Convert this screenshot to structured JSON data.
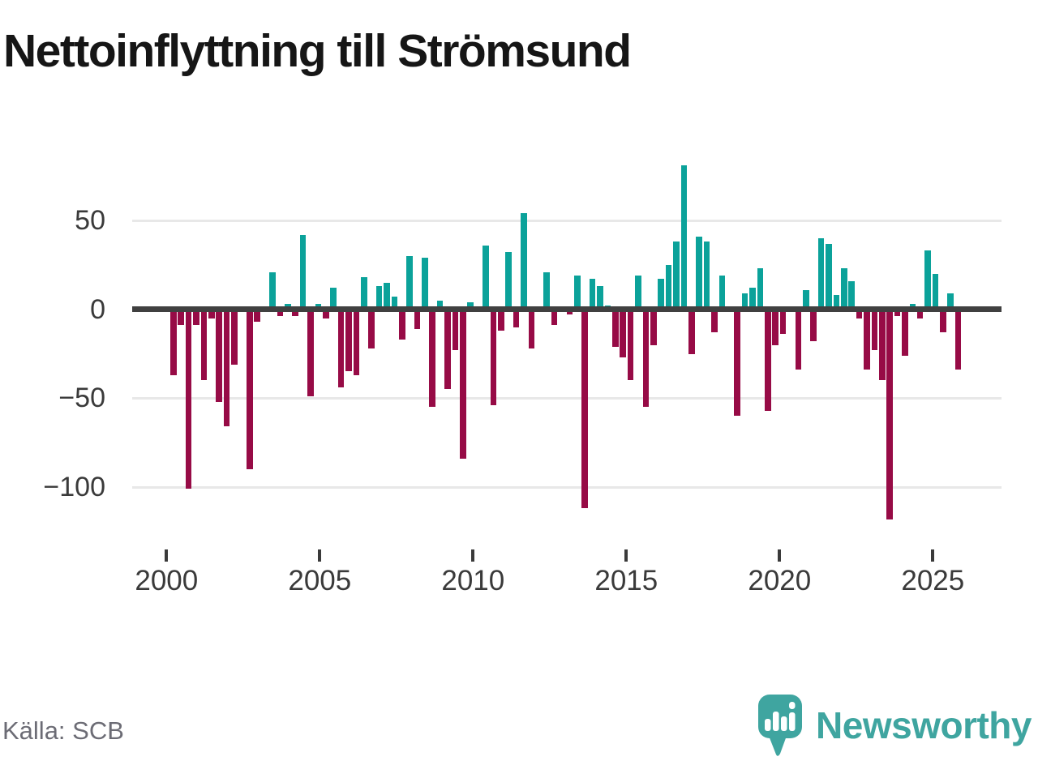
{
  "title": "Nettoinflyttning till Strömsund",
  "source": "Källa: SCB",
  "logo": {
    "text": "Newsworthy",
    "color": "#3fa5a0"
  },
  "chart_data": {
    "type": "bar",
    "title": "Nettoinflyttning till Strömsund",
    "frequency": "quarterly",
    "start_period": "2000-Q1",
    "end_period": "2025-Q4",
    "grid": true,
    "positive_color": "#0ba29a",
    "negative_color": "#970b46",
    "x_tick_labels": [
      "2000",
      "2005",
      "2010",
      "2015",
      "2020",
      "2025"
    ],
    "y_tick_labels": [
      "50",
      "0",
      "−50",
      "−100"
    ],
    "y_tick_values": [
      50,
      0,
      -50,
      -100
    ],
    "ylim": [
      -125,
      88
    ],
    "values": [
      -37,
      -9,
      -101,
      -9,
      -40,
      -5,
      -52,
      -66,
      -31,
      0,
      -90,
      -7,
      0,
      21,
      -4,
      3,
      -4,
      42,
      -49,
      3,
      -5,
      12,
      -44,
      -35,
      -37,
      18,
      -22,
      13,
      15,
      7,
      -17,
      30,
      -11,
      29,
      -55,
      5,
      -45,
      -23,
      -84,
      4,
      0,
      36,
      -54,
      -12,
      32,
      -10,
      54,
      -22,
      0,
      21,
      -9,
      0,
      -3,
      19,
      -112,
      17,
      13,
      2,
      -21,
      -27,
      -40,
      19,
      -55,
      -20,
      17,
      25,
      38,
      81,
      -25,
      41,
      38,
      -13,
      19,
      0,
      -60,
      9,
      12,
      23,
      -57,
      -20,
      -14,
      0,
      -34,
      11,
      -18,
      40,
      37,
      8,
      23,
      16,
      -5,
      -34,
      -23,
      -40,
      -118,
      -4,
      -26,
      3,
      -5,
      33,
      20,
      -13,
      9,
      -34
    ]
  }
}
